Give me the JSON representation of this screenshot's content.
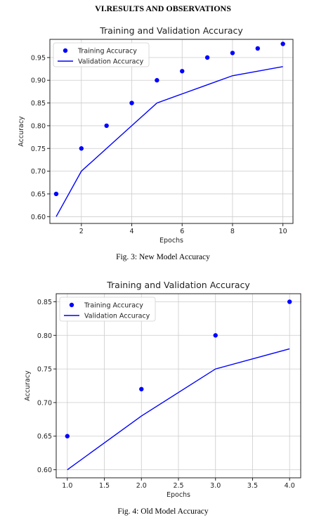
{
  "section_heading": "VI.RESULTS AND OBSERVATIONS",
  "figures": [
    {
      "caption": "Fig. 3: New Model Accuracy"
    },
    {
      "caption": "Fig. 4: Old Model Accuracy"
    }
  ],
  "chart_data": [
    {
      "type": "line",
      "title": "Training and Validation Accuracy",
      "xlabel": "Epochs",
      "ylabel": "Accuracy",
      "xlim": [
        0.75,
        10.4
      ],
      "ylim": [
        0.585,
        0.99
      ],
      "xticks": [
        2,
        4,
        6,
        8,
        10
      ],
      "xtick_labels": [
        "2",
        "4",
        "6",
        "8",
        "10"
      ],
      "yticks": [
        0.6,
        0.65,
        0.7,
        0.75,
        0.8,
        0.85,
        0.9,
        0.95
      ],
      "ytick_labels": [
        "0.60",
        "0.65",
        "0.70",
        "0.75",
        "0.80",
        "0.85",
        "0.90",
        "0.95"
      ],
      "grid": true,
      "legend_position": "top-left",
      "series": [
        {
          "name": "Training Accuracy",
          "style": "points",
          "color": "#0000ff",
          "x": [
            1,
            2,
            3,
            4,
            5,
            6,
            7,
            8,
            9,
            10
          ],
          "y": [
            0.65,
            0.75,
            0.8,
            0.85,
            0.9,
            0.92,
            0.95,
            0.96,
            0.97,
            0.98
          ]
        },
        {
          "name": "Validation Accuracy",
          "style": "line",
          "color": "#0000ff",
          "x": [
            1,
            2,
            3,
            4,
            5,
            6,
            7,
            8,
            9,
            10
          ],
          "y": [
            0.6,
            0.7,
            0.75,
            0.8,
            0.85,
            0.87,
            0.89,
            0.91,
            0.92,
            0.93
          ]
        }
      ]
    },
    {
      "type": "line",
      "title": "Training and Validation Accuracy",
      "xlabel": "Epochs",
      "ylabel": "Accuracy",
      "xlim": [
        0.85,
        4.15
      ],
      "ylim": [
        0.588,
        0.862
      ],
      "xticks": [
        1.0,
        1.5,
        2.0,
        2.5,
        3.0,
        3.5,
        4.0
      ],
      "xtick_labels": [
        "1.0",
        "1.5",
        "2.0",
        "2.5",
        "3.0",
        "3.5",
        "4.0"
      ],
      "yticks": [
        0.6,
        0.65,
        0.7,
        0.75,
        0.8,
        0.85
      ],
      "ytick_labels": [
        "0.60",
        "0.65",
        "0.70",
        "0.75",
        "0.80",
        "0.85"
      ],
      "grid": true,
      "legend_position": "top-left",
      "series": [
        {
          "name": "Training Accuracy",
          "style": "points",
          "color": "#0000ff",
          "x": [
            1,
            2,
            3,
            4
          ],
          "y": [
            0.65,
            0.72,
            0.8,
            0.85
          ]
        },
        {
          "name": "Validation Accuracy",
          "style": "line",
          "color": "#0000ff",
          "x": [
            1,
            2,
            3,
            4
          ],
          "y": [
            0.6,
            0.68,
            0.75,
            0.78
          ]
        }
      ]
    }
  ]
}
